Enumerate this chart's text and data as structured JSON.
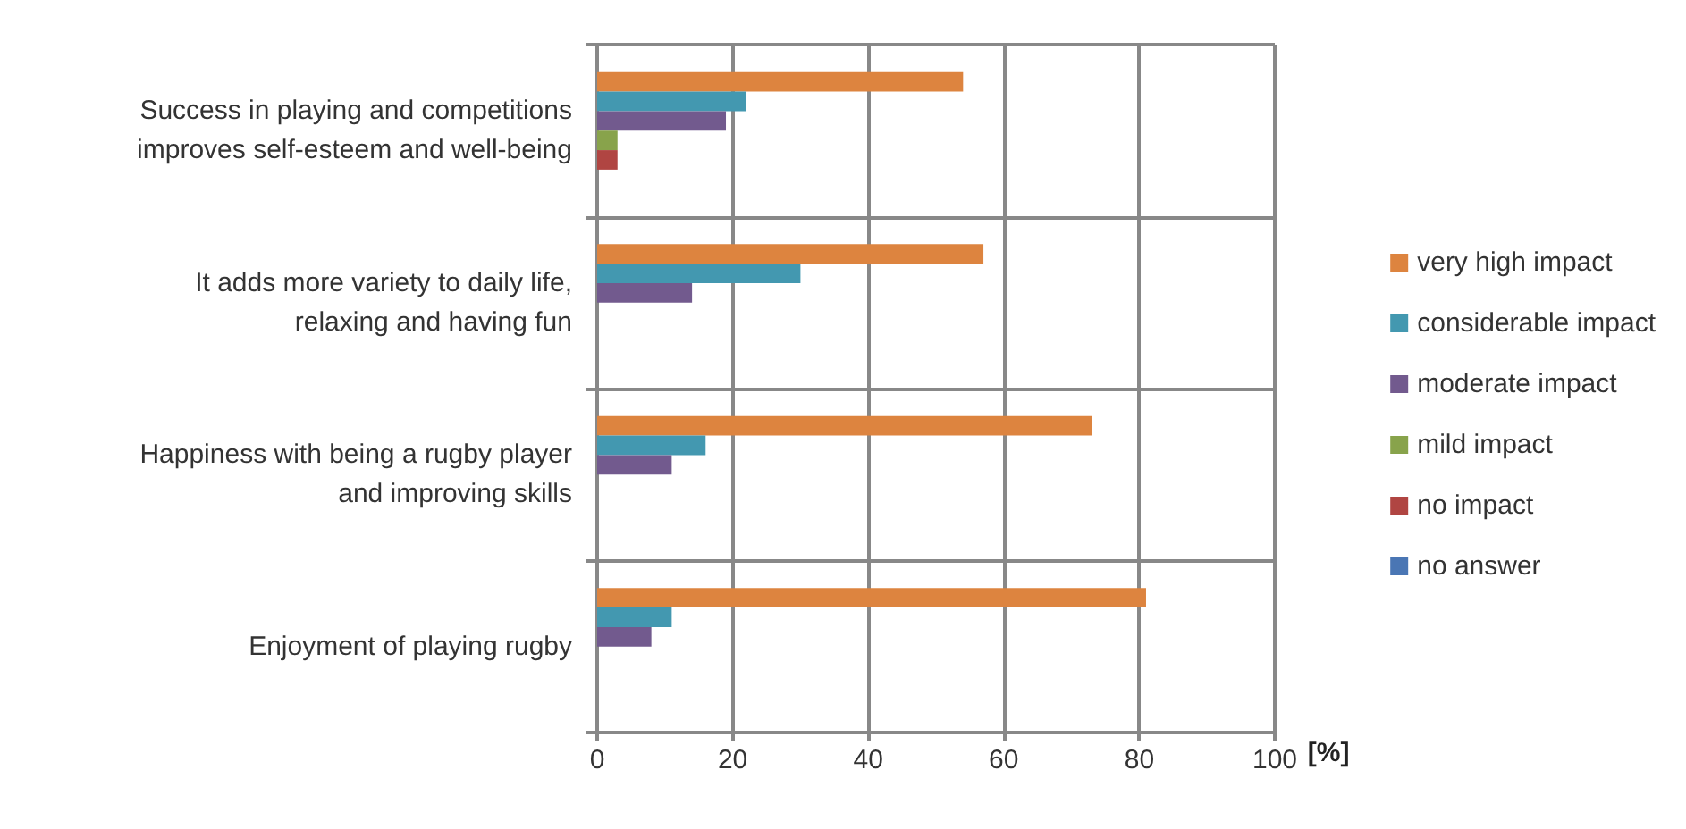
{
  "chart_data": {
    "type": "bar",
    "orientation": "horizontal",
    "xlabel": "[%]",
    "categories": [
      "Success in playing and competitions\nimproves self-esteem and well-being",
      "It adds more variety to daily life,\nrelaxing and having fun",
      "Happiness with being a rugby player\nand improving skills",
      "Enjoyment of playing rugby"
    ],
    "series": [
      {
        "name": "very high impact",
        "color": "#dd843f",
        "values": [
          54,
          57,
          73,
          81
        ]
      },
      {
        "name": "considerable impact",
        "color": "#4398b0",
        "values": [
          22,
          30,
          16,
          11
        ]
      },
      {
        "name": "moderate impact",
        "color": "#725a8e",
        "values": [
          19,
          14,
          11,
          8
        ]
      },
      {
        "name": "mild impact",
        "color": "#88a34b",
        "values": [
          3,
          null,
          null,
          null
        ]
      },
      {
        "name": "no impact",
        "color": "#b04542",
        "values": [
          3,
          null,
          null,
          null
        ]
      },
      {
        "name": "no answer",
        "color": "#4a76b4",
        "values": [
          null,
          null,
          null,
          null
        ]
      }
    ],
    "xlim": [
      0,
      100
    ],
    "xticks": [
      0,
      20,
      40,
      60,
      80,
      100
    ],
    "grid": true,
    "legend": "right"
  }
}
